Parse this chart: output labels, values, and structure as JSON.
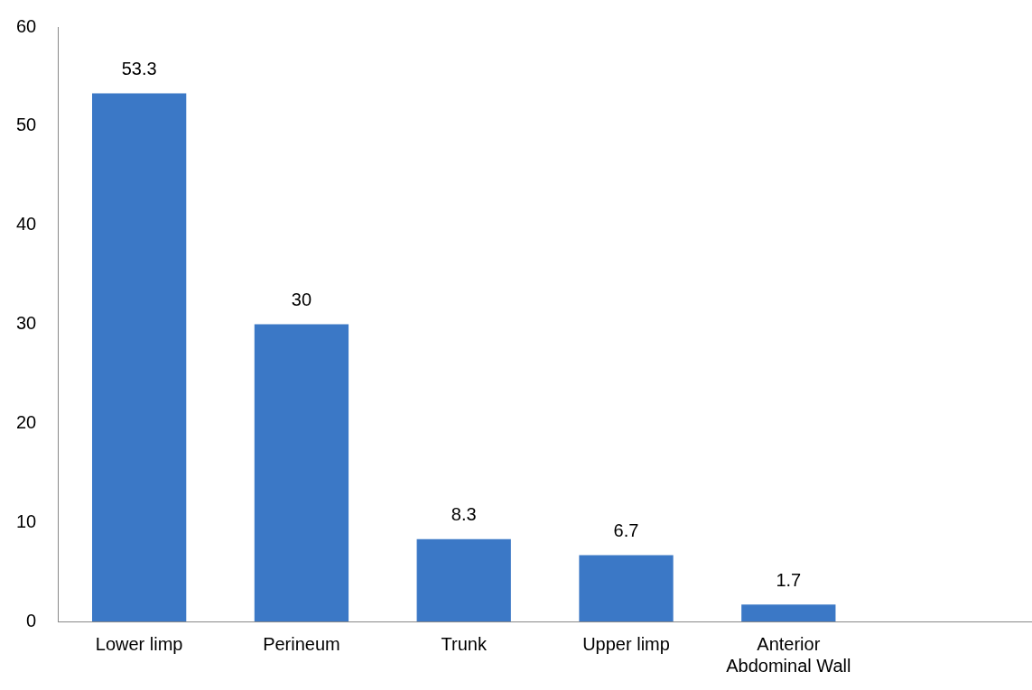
{
  "chart_data": {
    "type": "bar",
    "categories": [
      "Lower limp",
      "Perineum",
      "Trunk",
      "Upper limp",
      "Anterior Abdominal Wall",
      null
    ],
    "values": [
      53.3,
      30,
      8.3,
      6.7,
      1.7,
      null
    ],
    "color": "#3b78c6",
    "ylim": [
      0,
      60
    ],
    "yticks": [
      0,
      10,
      20,
      30,
      40,
      50,
      60
    ],
    "grid": false,
    "legend": false,
    "data_labels": true
  }
}
